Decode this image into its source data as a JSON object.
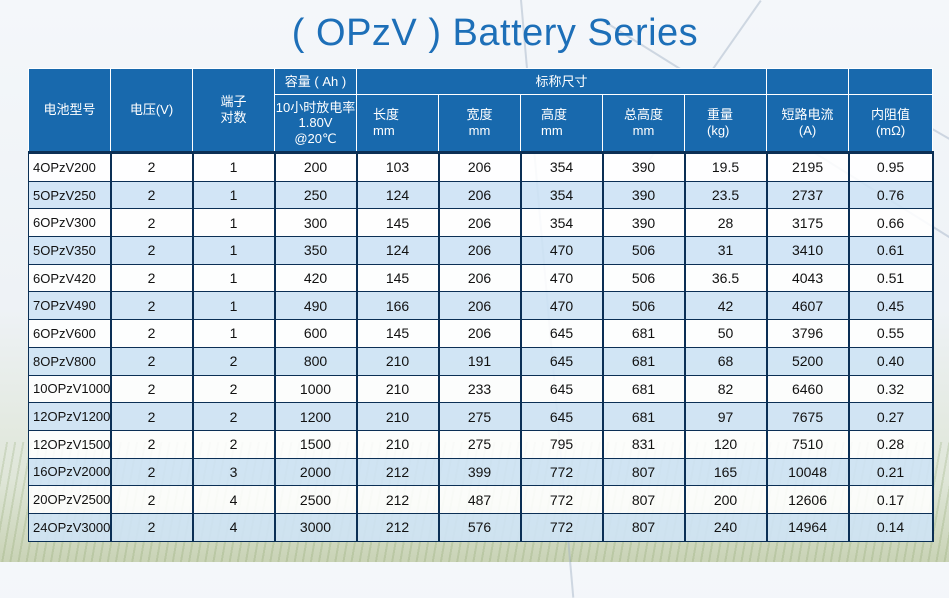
{
  "title": "( OPzV ) Battery Series",
  "header": {
    "model": "电池型号",
    "voltage": "电压(V)",
    "terminals": "端子\n对数",
    "capacity_group": "容量 ( Ah )",
    "capacity_sub": "10小时放电率\n1.80V\n@20℃",
    "dimension_group": "标称尺寸",
    "length": "长度\nmm",
    "width": "宽度\nmm",
    "height": "高度\nmm",
    "total_height": "总高度\nmm",
    "weight": "重量\n(kg)",
    "short_circuit": "短路电流\n(A)",
    "resistance": "内阻值\n(mΩ)"
  },
  "rows": [
    {
      "model": "4OPzV200",
      "voltage": "2",
      "terminals": "1",
      "capacity": "200",
      "length": "103",
      "width": "206",
      "height": "354",
      "total_height": "390",
      "weight": "19.5",
      "short_circuit": "2195",
      "resistance": "0.95"
    },
    {
      "model": "5OPzV250",
      "voltage": "2",
      "terminals": "1",
      "capacity": "250",
      "length": "124",
      "width": "206",
      "height": "354",
      "total_height": "390",
      "weight": "23.5",
      "short_circuit": "2737",
      "resistance": "0.76"
    },
    {
      "model": "6OPzV300",
      "voltage": "2",
      "terminals": "1",
      "capacity": "300",
      "length": "145",
      "width": "206",
      "height": "354",
      "total_height": "390",
      "weight": "28",
      "short_circuit": "3175",
      "resistance": "0.66"
    },
    {
      "model": "5OPzV350",
      "voltage": "2",
      "terminals": "1",
      "capacity": "350",
      "length": "124",
      "width": "206",
      "height": "470",
      "total_height": "506",
      "weight": "31",
      "short_circuit": "3410",
      "resistance": "0.61"
    },
    {
      "model": "6OPzV420",
      "voltage": "2",
      "terminals": "1",
      "capacity": "420",
      "length": "145",
      "width": "206",
      "height": "470",
      "total_height": "506",
      "weight": "36.5",
      "short_circuit": "4043",
      "resistance": "0.51"
    },
    {
      "model": "7OPzV490",
      "voltage": "2",
      "terminals": "1",
      "capacity": "490",
      "length": "166",
      "width": "206",
      "height": "470",
      "total_height": "506",
      "weight": "42",
      "short_circuit": "4607",
      "resistance": "0.45"
    },
    {
      "model": "6OPzV600",
      "voltage": "2",
      "terminals": "1",
      "capacity": "600",
      "length": "145",
      "width": "206",
      "height": "645",
      "total_height": "681",
      "weight": "50",
      "short_circuit": "3796",
      "resistance": "0.55"
    },
    {
      "model": "8OPzV800",
      "voltage": "2",
      "terminals": "2",
      "capacity": "800",
      "length": "210",
      "width": "191",
      "height": "645",
      "total_height": "681",
      "weight": "68",
      "short_circuit": "5200",
      "resistance": "0.40"
    },
    {
      "model": "10OPzV1000",
      "voltage": "2",
      "terminals": "2",
      "capacity": "1000",
      "length": "210",
      "width": "233",
      "height": "645",
      "total_height": "681",
      "weight": "82",
      "short_circuit": "6460",
      "resistance": "0.32"
    },
    {
      "model": "12OPzV1200",
      "voltage": "2",
      "terminals": "2",
      "capacity": "1200",
      "length": "210",
      "width": "275",
      "height": "645",
      "total_height": "681",
      "weight": "97",
      "short_circuit": "7675",
      "resistance": "0.27"
    },
    {
      "model": "12OPzV1500",
      "voltage": "2",
      "terminals": "2",
      "capacity": "1500",
      "length": "210",
      "width": "275",
      "height": "795",
      "total_height": "831",
      "weight": "120",
      "short_circuit": "7510",
      "resistance": "0.28"
    },
    {
      "model": "16OPzV2000",
      "voltage": "2",
      "terminals": "3",
      "capacity": "2000",
      "length": "212",
      "width": "399",
      "height": "772",
      "total_height": "807",
      "weight": "165",
      "short_circuit": "10048",
      "resistance": "0.21"
    },
    {
      "model": "20OPzV2500",
      "voltage": "2",
      "terminals": "4",
      "capacity": "2500",
      "length": "212",
      "width": "487",
      "height": "772",
      "total_height": "807",
      "weight": "200",
      "short_circuit": "12606",
      "resistance": "0.17"
    },
    {
      "model": "24OPzV3000",
      "voltage": "2",
      "terminals": "4",
      "capacity": "3000",
      "length": "212",
      "width": "576",
      "height": "772",
      "total_height": "807",
      "weight": "240",
      "short_circuit": "14964",
      "resistance": "0.14"
    }
  ],
  "colors": {
    "title": "#1d6fb8",
    "header_bg": "#1869ad",
    "row_alt": "#cee3f5",
    "border": "#0b2f55"
  }
}
